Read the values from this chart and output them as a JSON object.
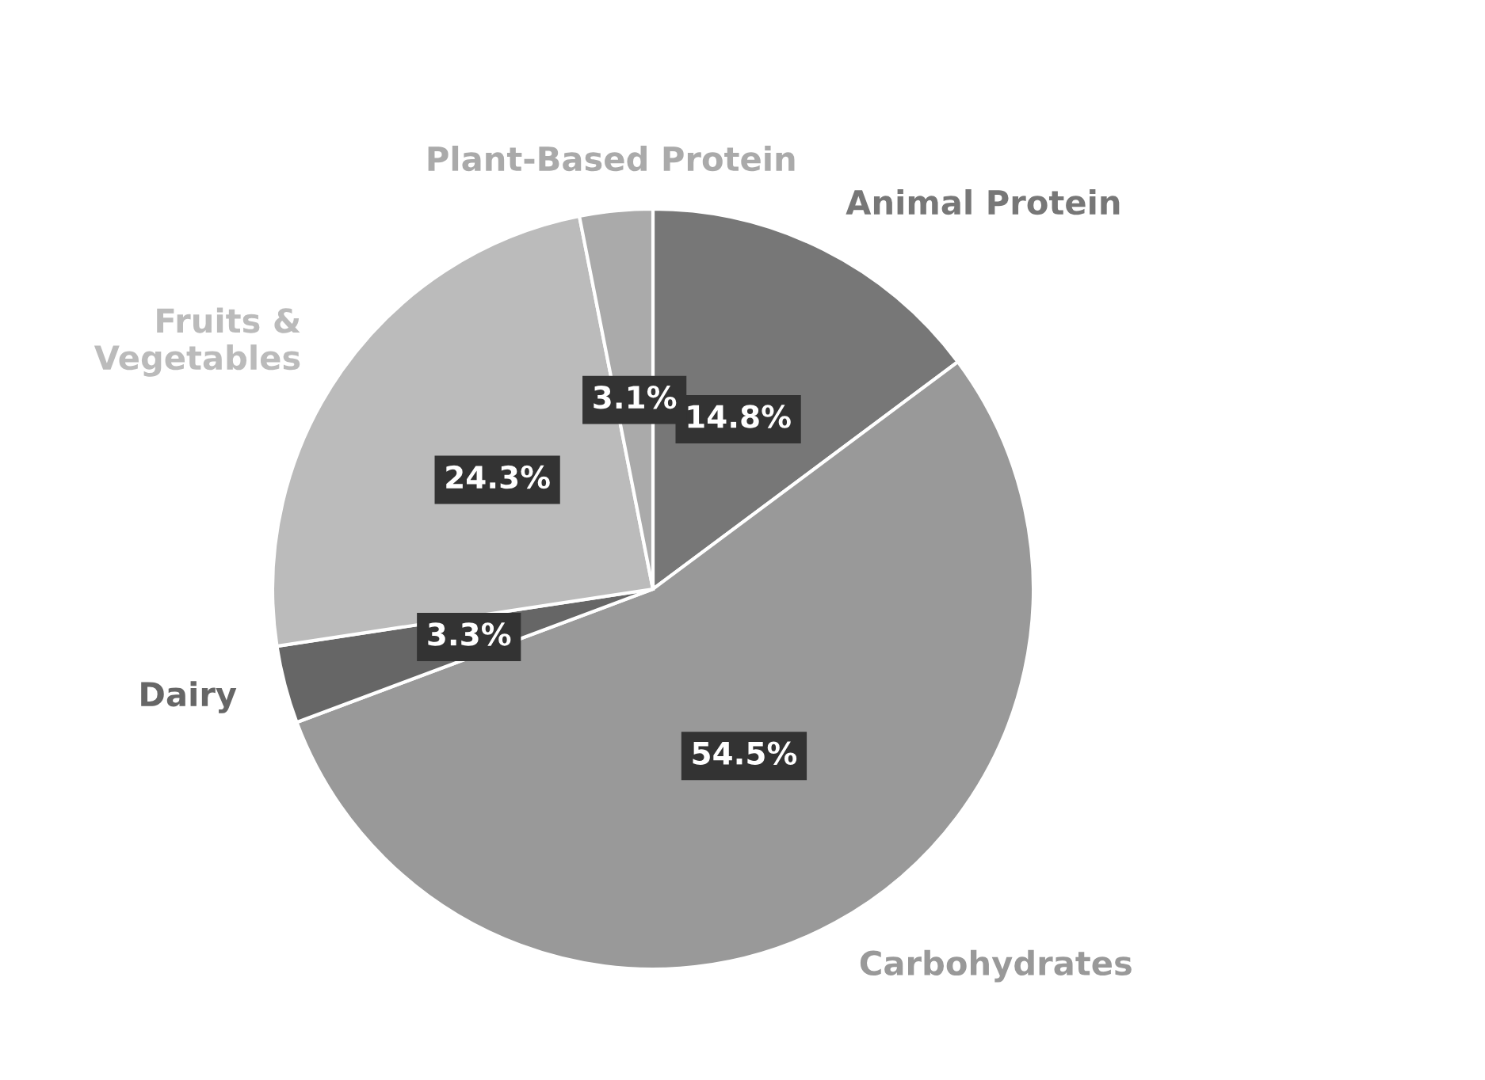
{
  "chart_data": {
    "type": "pie",
    "categories": [
      "Animal Protein",
      "Carbohydrates",
      "Dairy",
      "Fruits & Vegetables",
      "Plant-Based Protein"
    ],
    "values": [
      14.8,
      54.5,
      3.3,
      24.3,
      3.1
    ],
    "colors": [
      "#777777",
      "#999999",
      "#666666",
      "#bbbbbb",
      "#aaaaaa"
    ],
    "value_labels": [
      "14.8%",
      "54.5%",
      "3.3%",
      "24.3%",
      "3.1%"
    ],
    "legend": false
  }
}
